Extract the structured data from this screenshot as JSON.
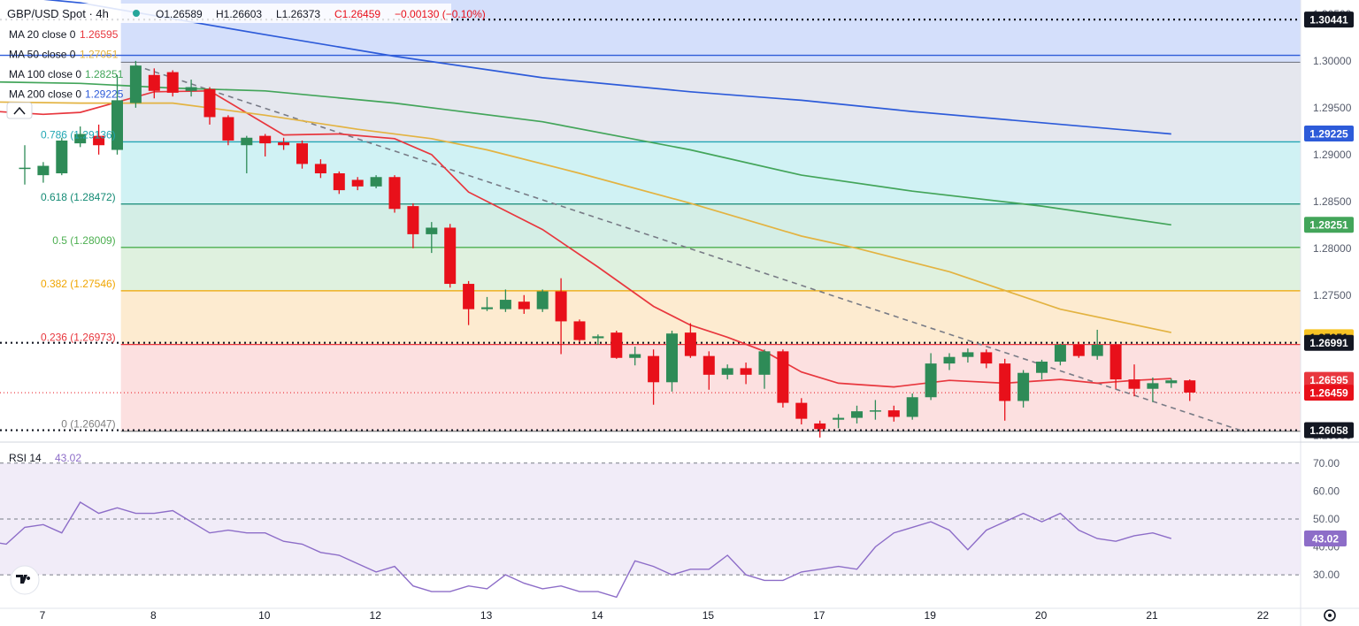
{
  "header": {
    "symbol": "GBP/USD Spot · 4h",
    "open": "O1.26589",
    "high": "H1.26603",
    "low": "L1.26373",
    "close": "C1.26459",
    "change": "−0.00130 (−0.10%)",
    "ma_lines": [
      {
        "label": "MA 20 close 0",
        "value": "1.26595",
        "color": "#e8373e"
      },
      {
        "label": "MA 50 close 0",
        "value": "1.27051",
        "color": "#e3b341"
      },
      {
        "label": "MA 100 close 0",
        "value": "1.28251",
        "color": "#43a55a"
      },
      {
        "label": "MA 200 close 0",
        "value": "1.29225",
        "color": "#2d5bd9"
      }
    ]
  },
  "colors": {
    "up": "#2e8b57",
    "down": "#e8101a",
    "ma20": "#e8373e",
    "ma50": "#e3b341",
    "ma100": "#43a55a",
    "ma200": "#2d5bd9",
    "rsi": "#8d6dc8"
  },
  "chart_data": [
    {
      "type": "candlestick",
      "title": "GBP/USD Spot · 4h",
      "ylim": [
        1.2595,
        1.3065
      ],
      "x_ticks": [
        {
          "label": "7",
          "i": 0
        },
        {
          "label": "8",
          "i": 6
        },
        {
          "label": "10",
          "i": 12
        },
        {
          "label": "12",
          "i": 18
        },
        {
          "label": "13",
          "i": 24
        },
        {
          "label": "14",
          "i": 30
        },
        {
          "label": "15",
          "i": 36
        },
        {
          "label": "17",
          "i": 42
        },
        {
          "label": "19",
          "i": 48
        },
        {
          "label": "20",
          "i": 54
        },
        {
          "label": "21",
          "i": 60
        },
        {
          "label": "22",
          "i": 66
        }
      ],
      "y_ticks": [
        "1.30500",
        "1.30000",
        "1.29500",
        "1.29000",
        "1.28500",
        "1.28000",
        "1.27500",
        "1.27000",
        "1.26500",
        "1.26000"
      ],
      "candles": [
        {
          "o": 1.2886,
          "h": 1.291,
          "l": 1.2868,
          "c": 1.2886
        },
        {
          "o": 1.2878,
          "h": 1.2892,
          "l": 1.287,
          "c": 1.2888
        },
        {
          "o": 1.288,
          "h": 1.2918,
          "l": 1.2878,
          "c": 1.2915
        },
        {
          "o": 1.2912,
          "h": 1.293,
          "l": 1.2908,
          "c": 1.2922
        },
        {
          "o": 1.292,
          "h": 1.2932,
          "l": 1.29,
          "c": 1.291
        },
        {
          "o": 1.2905,
          "h": 1.2985,
          "l": 1.29,
          "c": 1.2958
        },
        {
          "o": 1.2955,
          "h": 1.3,
          "l": 1.295,
          "c": 1.2995
        },
        {
          "o": 1.2985,
          "h": 1.2992,
          "l": 1.296,
          "c": 1.2968
        },
        {
          "o": 1.2988,
          "h": 1.299,
          "l": 1.2962,
          "c": 1.2966
        },
        {
          "o": 1.2968,
          "h": 1.298,
          "l": 1.2962,
          "c": 1.2972
        },
        {
          "o": 1.297,
          "h": 1.2972,
          "l": 1.2932,
          "c": 1.294
        },
        {
          "o": 1.294,
          "h": 1.2942,
          "l": 1.291,
          "c": 1.2915
        },
        {
          "o": 1.291,
          "h": 1.292,
          "l": 1.288,
          "c": 1.2918
        },
        {
          "o": 1.292,
          "h": 1.2922,
          "l": 1.2898,
          "c": 1.2912
        },
        {
          "o": 1.2913,
          "h": 1.2918,
          "l": 1.2905,
          "c": 1.291
        },
        {
          "o": 1.2912,
          "h": 1.2915,
          "l": 1.2885,
          "c": 1.289
        },
        {
          "o": 1.289,
          "h": 1.2895,
          "l": 1.2875,
          "c": 1.288
        },
        {
          "o": 1.288,
          "h": 1.2882,
          "l": 1.2858,
          "c": 1.2862
        },
        {
          "o": 1.2873,
          "h": 1.2876,
          "l": 1.2862,
          "c": 1.2866
        },
        {
          "o": 1.2866,
          "h": 1.2878,
          "l": 1.2864,
          "c": 1.2876
        },
        {
          "o": 1.2876,
          "h": 1.2878,
          "l": 1.2838,
          "c": 1.2842
        },
        {
          "o": 1.2845,
          "h": 1.2848,
          "l": 1.28,
          "c": 1.2815
        },
        {
          "o": 1.2815,
          "h": 1.2828,
          "l": 1.2795,
          "c": 1.2822
        },
        {
          "o": 1.2822,
          "h": 1.2826,
          "l": 1.2758,
          "c": 1.2762
        },
        {
          "o": 1.2762,
          "h": 1.2765,
          "l": 1.2718,
          "c": 1.2735
        },
        {
          "o": 1.2735,
          "h": 1.2748,
          "l": 1.2733,
          "c": 1.2737
        },
        {
          "o": 1.2735,
          "h": 1.2756,
          "l": 1.2732,
          "c": 1.2745
        },
        {
          "o": 1.2743,
          "h": 1.275,
          "l": 1.273,
          "c": 1.2735
        },
        {
          "o": 1.2735,
          "h": 1.2756,
          "l": 1.2732,
          "c": 1.2754
        },
        {
          "o": 1.2754,
          "h": 1.2768,
          "l": 1.2687,
          "c": 1.2722
        },
        {
          "o": 1.2722,
          "h": 1.2724,
          "l": 1.27,
          "c": 1.2702
        },
        {
          "o": 1.2704,
          "h": 1.2708,
          "l": 1.2697,
          "c": 1.2706
        },
        {
          "o": 1.271,
          "h": 1.2712,
          "l": 1.2682,
          "c": 1.2683
        },
        {
          "o": 1.2683,
          "h": 1.2695,
          "l": 1.2675,
          "c": 1.2687
        },
        {
          "o": 1.2685,
          "h": 1.2692,
          "l": 1.2633,
          "c": 1.2657
        },
        {
          "o": 1.2657,
          "h": 1.2712,
          "l": 1.2647,
          "c": 1.2709
        },
        {
          "o": 1.271,
          "h": 1.272,
          "l": 1.2683,
          "c": 1.2685
        },
        {
          "o": 1.2685,
          "h": 1.269,
          "l": 1.2649,
          "c": 1.2665
        },
        {
          "o": 1.2665,
          "h": 1.2676,
          "l": 1.266,
          "c": 1.2672
        },
        {
          "o": 1.2672,
          "h": 1.2678,
          "l": 1.2655,
          "c": 1.2665
        },
        {
          "o": 1.2665,
          "h": 1.2692,
          "l": 1.265,
          "c": 1.269
        },
        {
          "o": 1.269,
          "h": 1.2692,
          "l": 1.263,
          "c": 1.2635
        },
        {
          "o": 1.2635,
          "h": 1.264,
          "l": 1.2612,
          "c": 1.2618
        },
        {
          "o": 1.2613,
          "h": 1.2616,
          "l": 1.2598,
          "c": 1.2607
        },
        {
          "o": 1.2617,
          "h": 1.2623,
          "l": 1.2608,
          "c": 1.2619
        },
        {
          "o": 1.2619,
          "h": 1.2632,
          "l": 1.2613,
          "c": 1.2626
        },
        {
          "o": 1.2626,
          "h": 1.2638,
          "l": 1.2617,
          "c": 1.2627
        },
        {
          "o": 1.2627,
          "h": 1.2632,
          "l": 1.2615,
          "c": 1.262
        },
        {
          "o": 1.262,
          "h": 1.2645,
          "l": 1.2617,
          "c": 1.2641
        },
        {
          "o": 1.2641,
          "h": 1.2688,
          "l": 1.2638,
          "c": 1.2677
        },
        {
          "o": 1.2677,
          "h": 1.2688,
          "l": 1.267,
          "c": 1.2684
        },
        {
          "o": 1.2684,
          "h": 1.2693,
          "l": 1.2678,
          "c": 1.2689
        },
        {
          "o": 1.2689,
          "h": 1.2692,
          "l": 1.2672,
          "c": 1.2677
        },
        {
          "o": 1.2677,
          "h": 1.2682,
          "l": 1.2616,
          "c": 1.2637
        },
        {
          "o": 1.2637,
          "h": 1.267,
          "l": 1.263,
          "c": 1.2667
        },
        {
          "o": 1.2667,
          "h": 1.2681,
          "l": 1.266,
          "c": 1.2679
        },
        {
          "o": 1.2679,
          "h": 1.2698,
          "l": 1.2675,
          "c": 1.2697
        },
        {
          "o": 1.2697,
          "h": 1.27,
          "l": 1.2683,
          "c": 1.2685
        },
        {
          "o": 1.2685,
          "h": 1.2713,
          "l": 1.2681,
          "c": 1.2697
        },
        {
          "o": 1.2697,
          "h": 1.2698,
          "l": 1.265,
          "c": 1.266
        },
        {
          "o": 1.266,
          "h": 1.2676,
          "l": 1.2642,
          "c": 1.265
        },
        {
          "o": 1.265,
          "h": 1.2662,
          "l": 1.2636,
          "c": 1.2656
        },
        {
          "o": 1.2656,
          "h": 1.2661,
          "l": 1.2651,
          "c": 1.2659
        },
        {
          "o": 1.2659,
          "h": 1.266,
          "l": 1.2637,
          "c": 1.2646
        }
      ],
      "moving_averages": [
        {
          "name": "MA 20",
          "color": "#e8373e",
          "points": [
            [
              -9,
              1.2955
            ],
            [
              1,
              1.2943
            ],
            [
              3,
              1.2945
            ],
            [
              7,
              1.2967
            ],
            [
              10,
              1.2968
            ],
            [
              14,
              1.2921
            ],
            [
              17,
              1.2922
            ],
            [
              20,
              1.2917
            ],
            [
              22,
              1.29
            ],
            [
              24,
              1.286
            ],
            [
              28,
              1.282
            ],
            [
              31,
              1.278
            ],
            [
              34,
              1.2738
            ],
            [
              36,
              1.2718
            ],
            [
              38,
              1.2705
            ],
            [
              40,
              1.269
            ],
            [
              42,
              1.2668
            ],
            [
              44,
              1.2656
            ],
            [
              47,
              1.2652
            ],
            [
              50,
              1.2659
            ],
            [
              53,
              1.2656
            ],
            [
              56,
              1.266
            ],
            [
              58,
              1.2656
            ],
            [
              60,
              1.2659
            ],
            [
              62,
              1.2661
            ]
          ]
        },
        {
          "name": "MA 50",
          "color": "#e3b341",
          "points": [
            [
              -9,
              1.2958
            ],
            [
              3,
              1.2955
            ],
            [
              8,
              1.2955
            ],
            [
              13,
              1.2942
            ],
            [
              18,
              1.2927
            ],
            [
              22,
              1.2917
            ],
            [
              25,
              1.2905
            ],
            [
              30,
              1.288
            ],
            [
              36,
              1.2848
            ],
            [
              42,
              1.2813
            ],
            [
              45,
              1.28
            ],
            [
              50,
              1.2775
            ],
            [
              56,
              1.2735
            ],
            [
              62,
              1.271
            ]
          ]
        },
        {
          "name": "MA 100",
          "color": "#43a55a",
          "points": [
            [
              -9,
              1.298
            ],
            [
              3,
              1.2976
            ],
            [
              8,
              1.2971
            ],
            [
              13,
              1.2968
            ],
            [
              20,
              1.2955
            ],
            [
              28,
              1.2935
            ],
            [
              36,
              1.2905
            ],
            [
              42,
              1.2878
            ],
            [
              48,
              1.2861
            ],
            [
              55,
              1.2845
            ],
            [
              62,
              1.2825
            ]
          ]
        },
        {
          "name": "MA 200",
          "color": "#2d5bd9",
          "points": [
            [
              -9,
              1.3085
            ],
            [
              3,
              1.3062
            ],
            [
              8,
              1.3045
            ],
            [
              13,
              1.3028
            ],
            [
              20,
              1.3005
            ],
            [
              28,
              1.2982
            ],
            [
              36,
              1.2967
            ],
            [
              42,
              1.2958
            ],
            [
              48,
              1.2946
            ],
            [
              55,
              1.2934
            ],
            [
              62,
              1.2922
            ]
          ]
        }
      ],
      "trendline": {
        "from": [
          6,
          1.2995
        ],
        "to": [
          66,
          1.2604
        ]
      },
      "fib_levels": [
        {
          "label": "0.786 (1.29136)",
          "price": 1.29136,
          "color": "#22a7b4"
        },
        {
          "label": "0.618 (1.28472)",
          "price": 1.28472,
          "color": "#138a74"
        },
        {
          "label": "0.5 (1.28009)",
          "price": 1.28009,
          "color": "#4caf50"
        },
        {
          "label": "0.382 (1.27546)",
          "price": 1.27546,
          "color": "#f0a500"
        },
        {
          "label": "0.236 (1.26973)",
          "price": 1.26973,
          "color": "#e8373e"
        },
        {
          "label": "0 (1.26047)",
          "price": 1.26047,
          "color": "#7f7f7f"
        }
      ],
      "fib_top": 1.29985,
      "horizontal_levels": [
        1.30441,
        1.26991,
        1.26058
      ],
      "current_price": 1.26459,
      "price_labels": [
        {
          "value": "1.30441",
          "price": 1.30441,
          "bg": "#131722"
        },
        {
          "value": "1.29225",
          "price": 1.29225,
          "bg": "#2d5bd9"
        },
        {
          "value": "1.28251",
          "price": 1.28251,
          "bg": "#43a55a"
        },
        {
          "value": "1.27051",
          "price": 1.27051,
          "bg": "#f7c325"
        },
        {
          "value": "1.26991",
          "price": 1.26991,
          "bg": "#131722"
        },
        {
          "value": "1.26595",
          "price": 1.26595,
          "bg": "#e8373e"
        },
        {
          "value": "1.26459",
          "price": 1.26459,
          "bg": "#e8101a"
        },
        {
          "value": "1.26058",
          "price": 1.26058,
          "bg": "#131722"
        }
      ]
    },
    {
      "type": "line",
      "title": "RSI 14",
      "last_value": "43.02",
      "ylim": [
        18,
        75
      ],
      "y_ticks": [
        "70.00",
        "60.00",
        "50.00",
        "40.00",
        "30.00"
      ],
      "band": [
        30,
        70
      ],
      "values": [
        42,
        41,
        47,
        48,
        45,
        56,
        52,
        54,
        52,
        52,
        53,
        49,
        45,
        46,
        45,
        45,
        42,
        41,
        38,
        37,
        34,
        31,
        33,
        26,
        24,
        24,
        26,
        25,
        30,
        27,
        25,
        26,
        24,
        24,
        22,
        35,
        33,
        30,
        32,
        32,
        37,
        30,
        28,
        28,
        31,
        32,
        33,
        32,
        40,
        45,
        47,
        49,
        46,
        39,
        46,
        49,
        52,
        49,
        52,
        46,
        43,
        42,
        44,
        45,
        43
      ]
    }
  ]
}
